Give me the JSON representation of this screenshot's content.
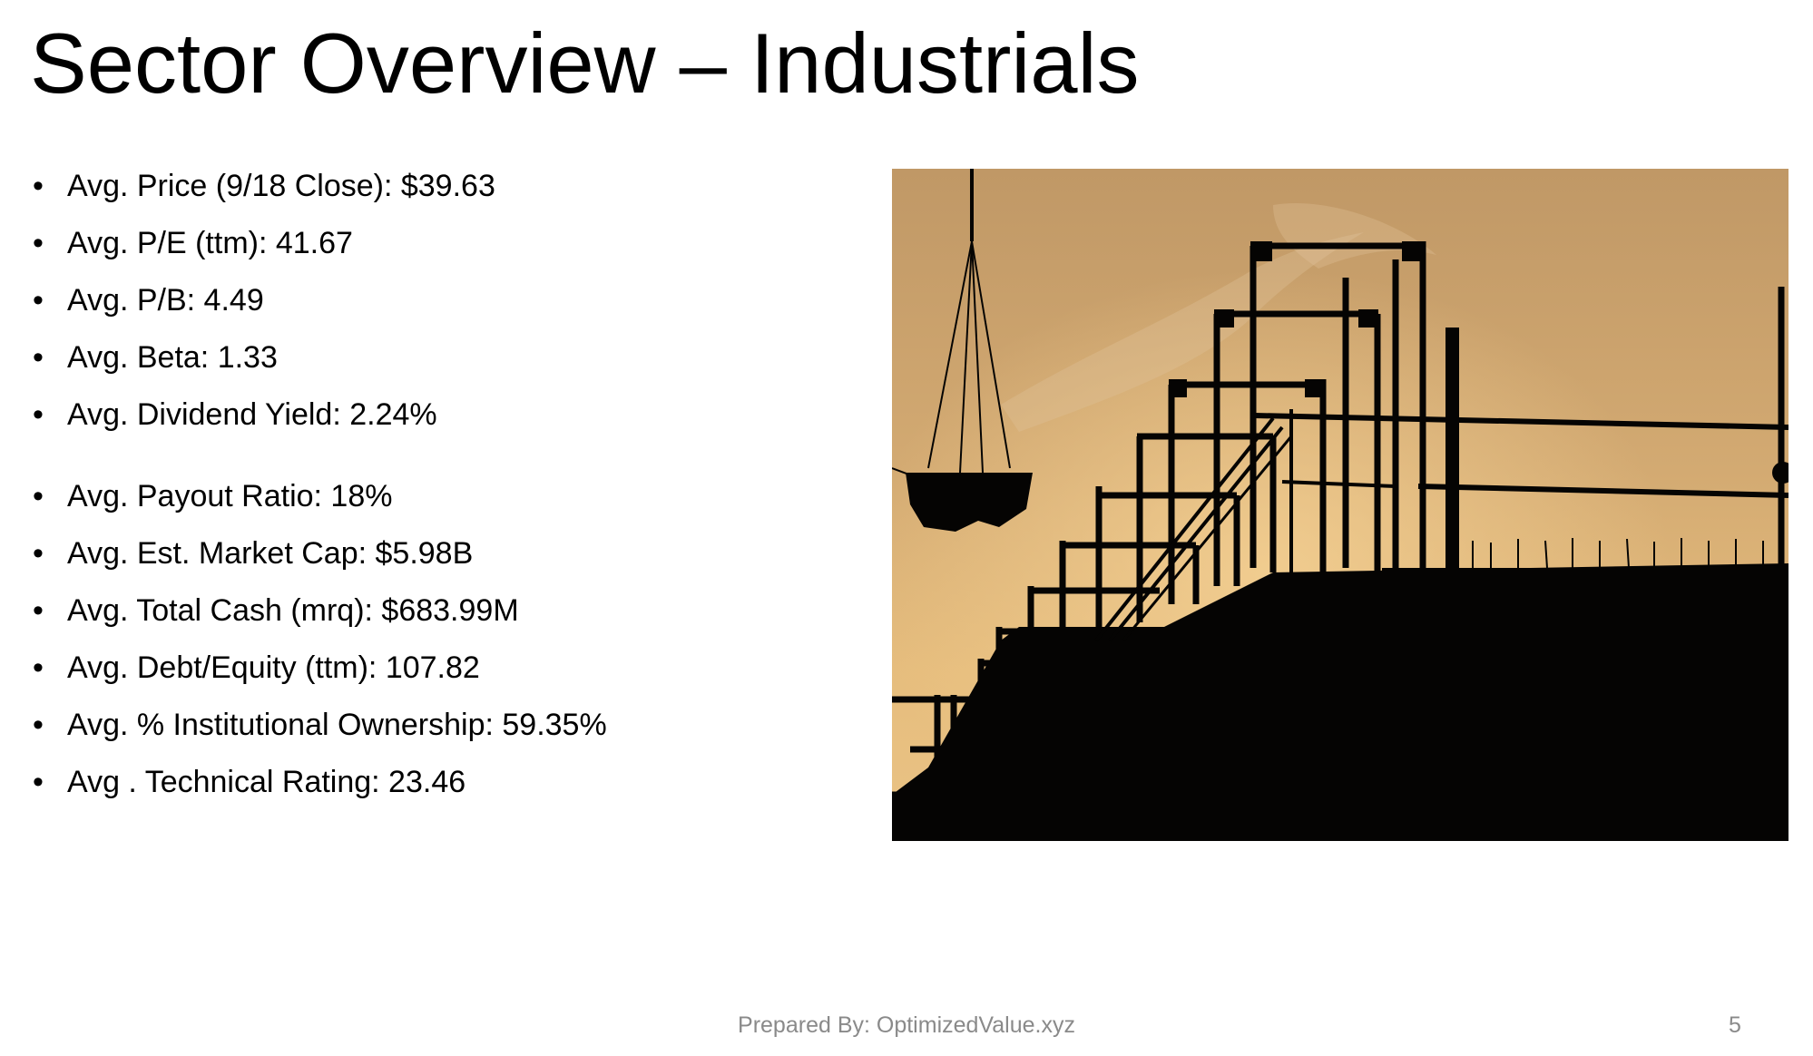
{
  "slide": {
    "title": "Sector Overview – Industrials",
    "bullets_group_1": [
      "Avg. Price (9/18 Close): $39.63",
      "Avg. P/E (ttm): 41.67",
      "Avg. P/B: 4.49",
      "Avg. Beta: 1.33",
      "Avg. Dividend Yield: 2.24%"
    ],
    "bullets_group_2": [
      "Avg. Payout Ratio: 18%",
      "Avg. Est. Market Cap: $5.98B",
      "Avg. Total Cash (mrq): $683.99M",
      "Avg. Debt/Equity (ttm): 107.82",
      "Avg. % Institutional Ownership: 59.35%",
      "Avg . Technical Rating: 23.46"
    ],
    "footer_text": "Prepared By: OptimizedValue.xyz",
    "page_number": "5"
  },
  "photo": {
    "icon": "construction-scaffold-silhouette-photo",
    "sky_top": "#c69f6b",
    "sky_bottom": "#e3b878",
    "silhouette": "#050403"
  }
}
